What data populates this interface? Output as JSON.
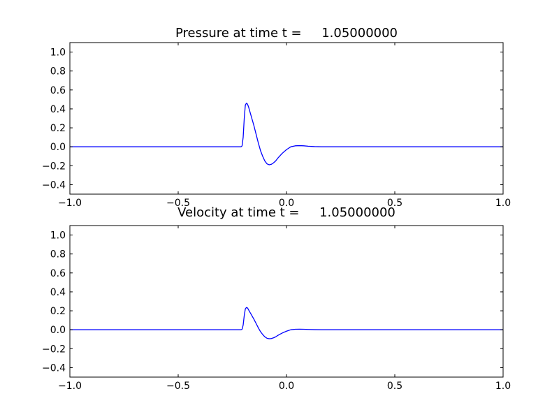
{
  "chart_data": [
    {
      "type": "line",
      "title": "Pressure at time t =     1.05000000",
      "xlim": [
        -1.0,
        1.0
      ],
      "ylim": [
        -0.5,
        1.1
      ],
      "xticks": [
        -1.0,
        -0.5,
        0.0,
        0.5,
        1.0
      ],
      "xtick_labels": [
        "−1.0",
        "−0.5",
        "0.0",
        "0.5",
        "1.0"
      ],
      "yticks": [
        -0.4,
        -0.2,
        0.0,
        0.2,
        0.4,
        0.6,
        0.8,
        1.0
      ],
      "ytick_labels": [
        "−0.4",
        "−0.2",
        "0.0",
        "0.2",
        "0.4",
        "0.6",
        "0.8",
        "1.0"
      ],
      "grid": false,
      "series": [
        {
          "color": "#0000ff",
          "x": [
            -1.0,
            -0.5,
            -0.21,
            -0.205,
            -0.2,
            -0.195,
            -0.19,
            -0.185,
            -0.18,
            -0.175,
            -0.17,
            -0.16,
            -0.15,
            -0.14,
            -0.13,
            -0.12,
            -0.11,
            -0.1,
            -0.09,
            -0.08,
            -0.07,
            -0.06,
            -0.05,
            -0.04,
            -0.02,
            0.0,
            0.02,
            0.04,
            0.06,
            0.08,
            0.1,
            0.13,
            0.16,
            0.2,
            0.3,
            0.5,
            1.0
          ],
          "y": [
            0.0,
            0.0,
            0.0,
            0.01,
            0.1,
            0.3,
            0.44,
            0.46,
            0.45,
            0.42,
            0.38,
            0.3,
            0.22,
            0.13,
            0.04,
            -0.04,
            -0.1,
            -0.15,
            -0.18,
            -0.19,
            -0.185,
            -0.17,
            -0.15,
            -0.12,
            -0.07,
            -0.03,
            0.0,
            0.01,
            0.012,
            0.01,
            0.006,
            0.002,
            0.0,
            0.0,
            0.0,
            0.0,
            0.0
          ]
        }
      ]
    },
    {
      "type": "line",
      "title": "Velocity at time t =     1.05000000",
      "xlim": [
        -1.0,
        1.0
      ],
      "ylim": [
        -0.5,
        1.1
      ],
      "xticks": [
        -1.0,
        -0.5,
        0.0,
        0.5,
        1.0
      ],
      "xtick_labels": [
        "−1.0",
        "−0.5",
        "0.0",
        "0.5",
        "1.0"
      ],
      "yticks": [
        -0.4,
        -0.2,
        0.0,
        0.2,
        0.4,
        0.6,
        0.8,
        1.0
      ],
      "ytick_labels": [
        "−0.4",
        "−0.2",
        "0.0",
        "0.2",
        "0.4",
        "0.6",
        "0.8",
        "1.0"
      ],
      "grid": false,
      "series": [
        {
          "color": "#0000ff",
          "x": [
            -1.0,
            -0.5,
            -0.21,
            -0.205,
            -0.2,
            -0.195,
            -0.19,
            -0.185,
            -0.18,
            -0.175,
            -0.17,
            -0.16,
            -0.15,
            -0.14,
            -0.13,
            -0.12,
            -0.11,
            -0.1,
            -0.09,
            -0.08,
            -0.07,
            -0.06,
            -0.05,
            -0.04,
            -0.02,
            0.0,
            0.02,
            0.04,
            0.06,
            0.08,
            0.1,
            0.13,
            0.16,
            0.2,
            0.3,
            0.5,
            1.0
          ],
          "y": [
            0.0,
            0.0,
            0.0,
            0.005,
            0.05,
            0.15,
            0.22,
            0.235,
            0.23,
            0.21,
            0.19,
            0.15,
            0.11,
            0.065,
            0.02,
            -0.02,
            -0.05,
            -0.075,
            -0.09,
            -0.095,
            -0.093,
            -0.085,
            -0.075,
            -0.06,
            -0.035,
            -0.015,
            0.0,
            0.005,
            0.006,
            0.005,
            0.003,
            0.001,
            0.0,
            0.0,
            0.0,
            0.0,
            0.0
          ]
        }
      ]
    }
  ]
}
